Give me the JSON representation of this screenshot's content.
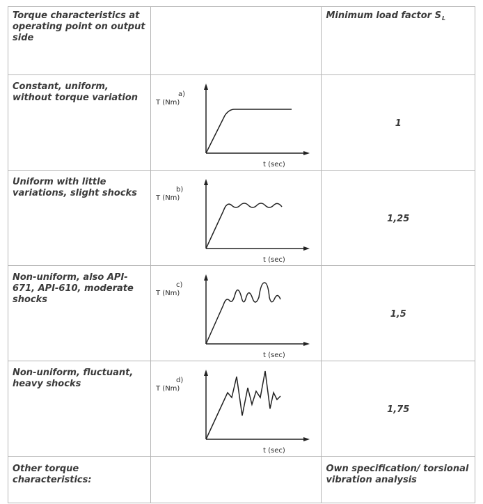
{
  "table": {
    "header": {
      "characteristics": "Torque characteristics at operating point on output side",
      "graph": "",
      "factor_label": "Minimum load factor S",
      "factor_subscript": "L"
    },
    "rows": [
      {
        "description": "Constant, uniform, without torque variation",
        "graph": {
          "letter": "a)",
          "y_label": "T (Nm)",
          "x_label": "t (sec)"
        },
        "factor": "1"
      },
      {
        "description": "Uniform with little variations, slight shocks",
        "graph": {
          "letter": "b)",
          "y_label": "T (Nm)",
          "x_label": "t (sec)"
        },
        "factor": "1,25"
      },
      {
        "description": "Non-uniform, also API-671, API-610, moderate shocks",
        "graph": {
          "letter": "c)",
          "y_label": "T (Nm)",
          "x_label": "t (sec)"
        },
        "factor": "1,5"
      },
      {
        "description": "Non-uniform, fluctuant, heavy shocks",
        "graph": {
          "letter": "d)",
          "y_label": "T (Nm)",
          "x_label": "t (sec)"
        },
        "factor": "1,75"
      }
    ],
    "footer": {
      "description": "Other torque characteristics:",
      "factor": "Own specification/ torsional vibration analysis"
    }
  }
}
